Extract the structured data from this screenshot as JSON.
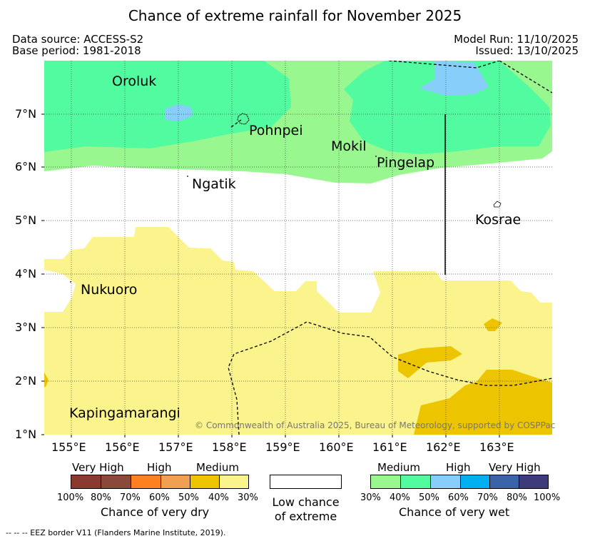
{
  "title": "Chance of extreme rainfall for November 2025",
  "header": {
    "data_source": "Data source: ACCESS-S2",
    "base_period": "Base period: 1981-2018",
    "model_run": "Model Run: 11/10/2025",
    "issued": "Issued: 13/10/2025"
  },
  "axes": {
    "lat_labels": [
      "7°N",
      "6°N",
      "5°N",
      "4°N",
      "3°N",
      "2°N",
      "1°N"
    ],
    "lon_labels": [
      "155°E",
      "156°E",
      "157°E",
      "158°E",
      "159°E",
      "160°E",
      "161°E",
      "162°E",
      "163°E"
    ]
  },
  "places": [
    "Oroluk",
    "Pohnpei",
    "Mokil",
    "Pingelap",
    "Ngatik",
    "Kosrae",
    "Nukuoro",
    "Kapingamarangi"
  ],
  "copyright": "© Commonwealth of Australia 2025, Bureau of Meteorology, supported by COSPPac",
  "legend": {
    "dry": {
      "headers": [
        "Very High",
        "High",
        "Medium"
      ],
      "colors": [
        "#8b3a2f",
        "#8a4a3a",
        "#ff8020",
        "#f0a050",
        "#ecc400",
        "#fbf38c"
      ],
      "ticks": [
        "100%",
        "80%",
        "70%",
        "60%",
        "50%",
        "40%",
        "30%"
      ],
      "caption": "Chance of very dry"
    },
    "low": {
      "caption_line1": "Low chance",
      "caption_line2": "of extreme",
      "color": "#ffffff"
    },
    "wet": {
      "headers": [
        "Medium",
        "High",
        "Very High"
      ],
      "colors": [
        "#99f790",
        "#52fba0",
        "#87cefa",
        "#00b0f0",
        "#3a64a8",
        "#3d3b7a"
      ],
      "ticks": [
        "30%",
        "40%",
        "50%",
        "60%",
        "70%",
        "80%",
        "100%"
      ],
      "caption": "Chance of very wet"
    }
  },
  "footnote": "--  --  -- EEZ border V11 (Flanders Marine Institute, 2019)."
}
